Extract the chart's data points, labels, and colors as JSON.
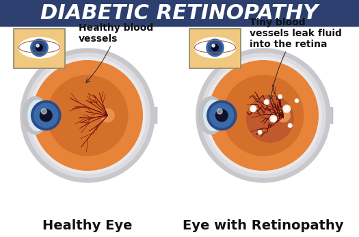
{
  "title": "DIABETIC RETINOPATHY",
  "title_bg": "#2d3f6e",
  "title_color": "#ffffff",
  "title_fontsize": 22,
  "label_left": "Healthy Eye",
  "label_right": "Eye with Retinopathy",
  "annotation_left": "Healthy blood\nvessels",
  "annotation_right": "Tiny blood\nvessels leak fluid\ninto the retina",
  "bg_color": "#ffffff",
  "sclera_outer": "#c8c8cc",
  "sclera_inner": "#dcdce0",
  "sclera_white": "#e8e8ec",
  "retina_outer": "#e8843a",
  "retina_mid": "#d4702a",
  "retina_inner": "#c86020",
  "optic_color": "#e89050",
  "cornea_outer": "#c0c0c4",
  "cornea_lens": "#c8d8e8",
  "iris_color": "#3a6aaa",
  "iris_dark": "#2a4a88",
  "pupil_color": "#111128",
  "vessel_healthy": "#6B0a0a",
  "vessel_diseased": "#5a0808",
  "spot_color": "#f0e8d0",
  "inset_bg": "#f0c880",
  "inset_border": "#d0a850",
  "label_fontsize": 14,
  "annotation_fontsize": 10
}
